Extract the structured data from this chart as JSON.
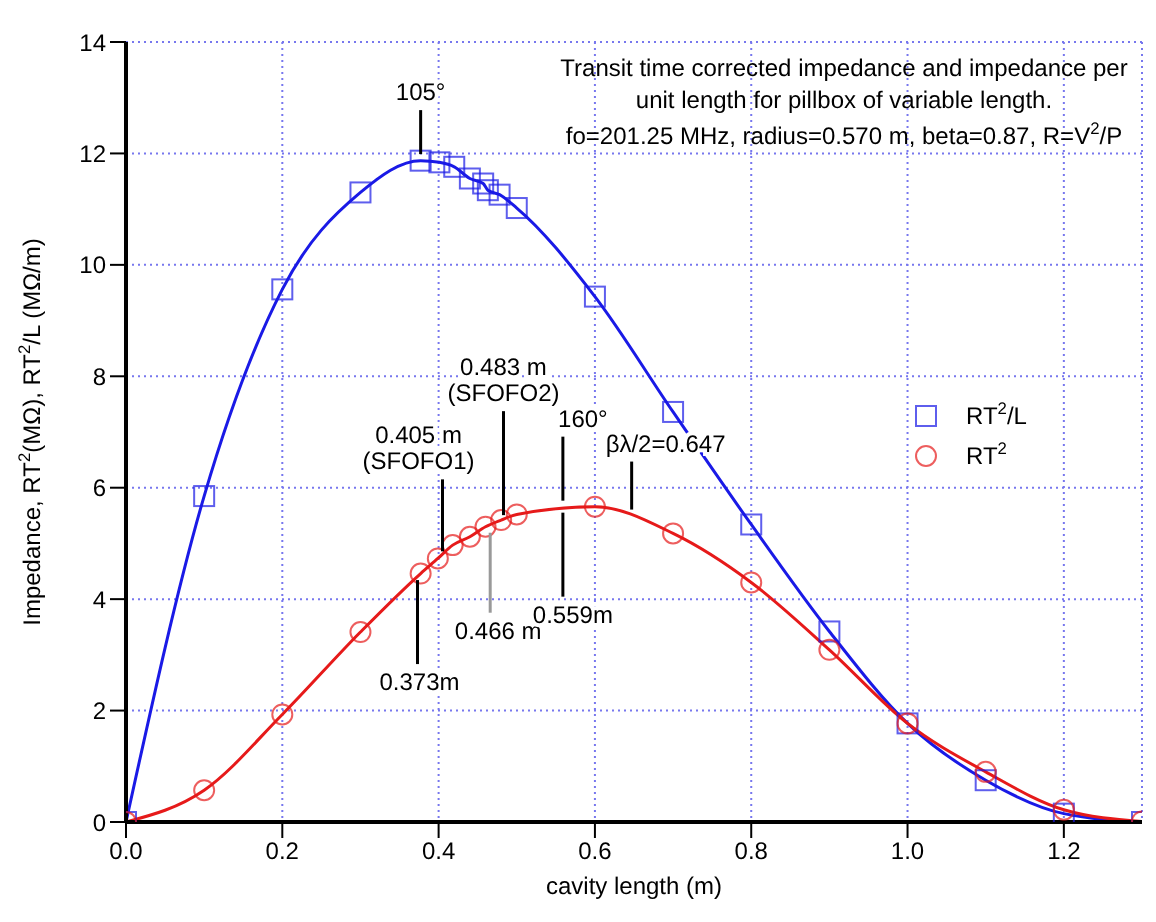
{
  "chart_data": {
    "type": "line",
    "title": "Transit time corrected impedance and impedance per unit length for pillbox of variable length.",
    "subtitle": "fo=201.25 MHz, radius=0.570 m, beta=0.87, R=V$^{2}$/P",
    "xlabel": "cavity length (m)",
    "ylabel": "Impedance, RT$^{2}$(MΩ), RT$^{2}$/L (MΩ/m)",
    "xlim": [
      0,
      1.3
    ],
    "xticks": [
      {
        "value": 0,
        "label": "0.0"
      },
      0.2,
      0.4,
      0.6,
      0.8,
      {
        "value": 1,
        "label": "1.0"
      },
      1.2
    ],
    "ylim": [
      0,
      14
    ],
    "yticks": [
      0,
      2,
      4,
      6,
      8,
      10,
      12,
      14
    ],
    "grid": true,
    "legend": "right",
    "series": [
      {
        "name": "RT$^{2}$/L",
        "color": "#1a1ae6",
        "marker": "square",
        "x": [
          0,
          0.1,
          0.2,
          0.3,
          0.377,
          0.401,
          0.42,
          0.44,
          0.457,
          0.463,
          0.478,
          0.5,
          0.6,
          0.7,
          0.8,
          0.9,
          1.0,
          1.1,
          1.2,
          1.3
        ],
        "values": [
          0,
          5.85,
          9.56,
          11.3,
          11.87,
          11.84,
          11.76,
          11.55,
          11.46,
          11.34,
          11.26,
          11.02,
          9.43,
          7.36,
          5.34,
          3.42,
          1.77,
          0.75,
          0.15,
          0
        ]
      },
      {
        "name": "RT$^{2}$",
        "color": "#e61a1a",
        "marker": "circle",
        "x": [
          0,
          0.1,
          0.2,
          0.3,
          0.377,
          0.399,
          0.418,
          0.44,
          0.46,
          0.48,
          0.5,
          0.6,
          0.7,
          0.8,
          0.9,
          1.0,
          1.1,
          1.2,
          1.3
        ],
        "values": [
          0,
          0.57,
          1.93,
          3.41,
          4.46,
          4.73,
          4.97,
          5.12,
          5.3,
          5.42,
          5.52,
          5.66,
          5.18,
          4.3,
          3.09,
          1.77,
          0.9,
          0.22,
          0.01
        ]
      }
    ],
    "annotations": [
      {
        "text": "105°",
        "x": 0.377,
        "y": 11.88
      },
      {
        "text": "0.483 m\n(SFOFO2)",
        "x": 0.483,
        "y": 5.4
      },
      {
        "text": "0.405 m\n(SFOFO1)",
        "x": 0.405,
        "y": 4.75
      },
      {
        "text": "160°",
        "x": 0.559,
        "y": 5.66
      },
      {
        "text": "βλ/2=0.647",
        "x": 0.647,
        "y": 5.5
      },
      {
        "text": "0.373m",
        "x": 0.373,
        "y": 4.45
      },
      {
        "text": "0.466 m",
        "x": 0.466,
        "y": 5.3
      },
      {
        "text": "0.559m",
        "x": 0.559,
        "y": 5.66
      }
    ]
  }
}
